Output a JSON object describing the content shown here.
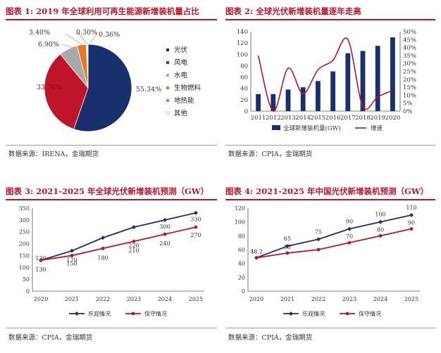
{
  "panels": [
    {
      "title": "图表 1: 2019 年全球利用可再生能源新增装机量占比",
      "source": "数据来源：IRENA，金瑞期货"
    },
    {
      "title": "图表 2: 全球光伏新增装机量逐年走高",
      "source": "数据来源：CPIA，金瑞期货"
    },
    {
      "title": "图表 3: 2021-2025 年全球光伏新增装机预测（GW）",
      "source": "数据来源：CPIA，金瑞期货"
    },
    {
      "title": "图表 4: 2021-2025 年中国光伏新增装机预测（GW）",
      "source": "数据来源：CPIA，金瑞期货"
    }
  ],
  "colors": {
    "navy": "#1a2f6e",
    "red": "#c0142a",
    "gray": "#a9a9a9",
    "orange": "#e8771e",
    "title_red": "#c0142a"
  },
  "watermark": "",
  "chart_data": [
    {
      "type": "pie",
      "categories": [
        "光伏",
        "风电",
        "水电",
        "生物燃料",
        "地热能",
        "其他"
      ],
      "values": [
        55.34,
        33.76,
        6.9,
        3.4,
        0.3,
        0.36
      ],
      "value_labels": [
        "55.34%",
        "33.76%",
        "6.90%",
        "3.40%",
        "0.30%",
        "0.36%"
      ],
      "colors": [
        "#1a2f6e",
        "#c0142a",
        "#a9a9a9",
        "#e8771e",
        "#5b9bd5",
        "#ffffff"
      ],
      "legend": "right"
    },
    {
      "type": "bar",
      "categories": [
        "2011",
        "2012",
        "2013",
        "2014",
        "2015",
        "2016",
        "2017",
        "2018",
        "2019",
        "2020"
      ],
      "series": [
        {
          "name": "全球新增装机量(GW)",
          "type": "bar",
          "axis": "left",
          "values": [
            30,
            30,
            38,
            42,
            53,
            70,
            102,
            106,
            115,
            130
          ]
        },
        {
          "name": "增速",
          "type": "line",
          "axis": "right",
          "values": [
            35,
            0,
            27,
            11,
            26,
            32,
            45,
            3,
            9,
            13
          ]
        }
      ],
      "ylim_left": [
        0,
        140
      ],
      "yticks_left": [
        0,
        20,
        40,
        60,
        80,
        100,
        120,
        140
      ],
      "ylim_right": [
        0,
        50
      ],
      "yticks_right": [
        "0%",
        "5%",
        "10%",
        "15%",
        "20%",
        "25%",
        "30%",
        "35%",
        "40%",
        "45%",
        "50%"
      ],
      "legend": "bottom"
    },
    {
      "type": "line",
      "categories": [
        "2020",
        "2021",
        "2022",
        "2023",
        "2024",
        "2025"
      ],
      "series": [
        {
          "name": "乐观情况",
          "values": [
            130,
            170,
            225,
            270,
            300,
            330
          ],
          "labels": [
            "130",
            "170",
            "",
            "",
            "300",
            "330"
          ]
        },
        {
          "name": "保守情况",
          "values": [
            130,
            150,
            180,
            210,
            240,
            270
          ],
          "labels": [
            "",
            "150",
            "180",
            "210",
            "240",
            "270"
          ]
        }
      ],
      "extra_labels": [
        "220"
      ],
      "ylim": [
        0,
        350
      ],
      "yticks": [
        0,
        50,
        100,
        150,
        200,
        250,
        300,
        350
      ],
      "legend": "bottom"
    },
    {
      "type": "line",
      "categories": [
        "2020",
        "2021",
        "2022",
        "2023",
        "2024",
        "2025"
      ],
      "series": [
        {
          "name": "乐观情况",
          "values": [
            48.2,
            65,
            75,
            90,
            100,
            110
          ],
          "labels": [
            "48.2",
            "65",
            "75",
            "90",
            "100",
            "110"
          ]
        },
        {
          "name": "保守情况",
          "values": [
            48.2,
            55,
            60,
            70,
            80,
            90
          ],
          "labels": [
            "",
            "55",
            "",
            "70",
            "80",
            "90"
          ]
        }
      ],
      "ylim": [
        0,
        120
      ],
      "yticks": [
        0,
        20,
        40,
        60,
        80,
        100,
        120
      ],
      "legend": "bottom"
    }
  ]
}
